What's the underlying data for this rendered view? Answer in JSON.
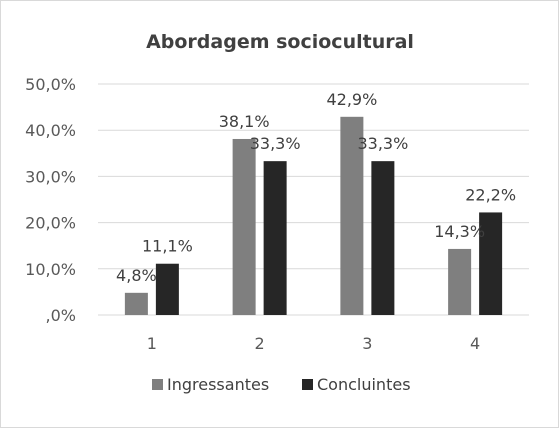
{
  "chart_data": {
    "type": "bar",
    "title": "Abordagem sociocultural",
    "categories": [
      "1",
      "2",
      "3",
      "4"
    ],
    "series": [
      {
        "name": "Ingressantes",
        "color": "#7f7f7f",
        "values": [
          4.8,
          38.1,
          42.9,
          14.3
        ],
        "labels": [
          "4,8%",
          "38,1%",
          "42,9%",
          "14,3%"
        ]
      },
      {
        "name": "Concluintes",
        "color": "#262626",
        "values": [
          11.1,
          33.3,
          33.3,
          22.2
        ],
        "labels": [
          "11,1%",
          "33,3%",
          "33,3%",
          "22,2%"
        ]
      }
    ],
    "y_ticks": [
      ",0%",
      "10,0%",
      "20,0%",
      "30,0%",
      "40,0%",
      "50,0%"
    ],
    "ylim": [
      0,
      50
    ],
    "xlabel": "",
    "ylabel": "",
    "grid": true,
    "legend_position": "bottom",
    "gridline_color": "#d9d9d9"
  }
}
